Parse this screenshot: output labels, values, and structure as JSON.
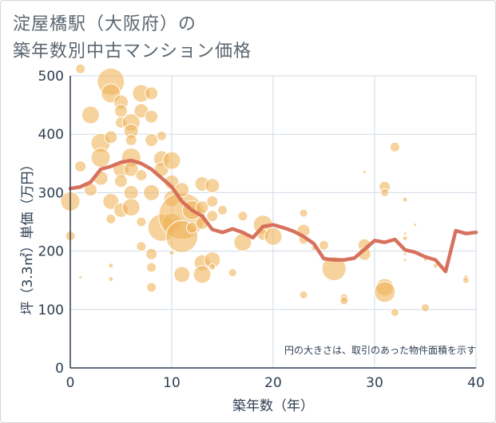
{
  "title": {
    "line1": "淀屋橋駅（大阪府）の",
    "line2": "築年数別中古マンション価格"
  },
  "note": "円の大きさは、取引のあった物件面積を示す",
  "colors": {
    "bubble": "#f0b45a",
    "line": "#d46a55",
    "grid": "#cfdae3",
    "axis": "#2d3e50"
  },
  "chart_data": {
    "type": "scatter",
    "xlabel": "築年数（年）",
    "ylabel": "坪（3.3㎡）単価（万円）",
    "xlim": [
      0,
      40
    ],
    "ylim": [
      0,
      500
    ],
    "xticks": [
      0,
      10,
      20,
      30,
      40
    ],
    "yticks": [
      0,
      100,
      200,
      300,
      400,
      500
    ],
    "grid": true,
    "points": [
      {
        "x": 0,
        "y": 285,
        "size": 12
      },
      {
        "x": 0,
        "y": 226,
        "size": 6
      },
      {
        "x": 1,
        "y": 512,
        "size": 6
      },
      {
        "x": 1,
        "y": 345,
        "size": 7
      },
      {
        "x": 1,
        "y": 155,
        "size": 2
      },
      {
        "x": 2,
        "y": 433,
        "size": 11
      },
      {
        "x": 2,
        "y": 305,
        "size": 8
      },
      {
        "x": 3,
        "y": 385,
        "size": 12
      },
      {
        "x": 3,
        "y": 360,
        "size": 12
      },
      {
        "x": 3,
        "y": 325,
        "size": 9
      },
      {
        "x": 4,
        "y": 490,
        "size": 17
      },
      {
        "x": 4,
        "y": 470,
        "size": 12
      },
      {
        "x": 4,
        "y": 395,
        "size": 8
      },
      {
        "x": 4,
        "y": 285,
        "size": 10
      },
      {
        "x": 4,
        "y": 255,
        "size": 6
      },
      {
        "x": 4,
        "y": 175,
        "size": 3
      },
      {
        "x": 4,
        "y": 152,
        "size": 3
      },
      {
        "x": 5,
        "y": 455,
        "size": 9
      },
      {
        "x": 5,
        "y": 440,
        "size": 8
      },
      {
        "x": 5,
        "y": 420,
        "size": 7
      },
      {
        "x": 5,
        "y": 340,
        "size": 10
      },
      {
        "x": 5,
        "y": 320,
        "size": 8
      },
      {
        "x": 5,
        "y": 270,
        "size": 9
      },
      {
        "x": 6,
        "y": 420,
        "size": 11
      },
      {
        "x": 6,
        "y": 405,
        "size": 9
      },
      {
        "x": 6,
        "y": 390,
        "size": 7
      },
      {
        "x": 6,
        "y": 360,
        "size": 12
      },
      {
        "x": 6,
        "y": 340,
        "size": 9
      },
      {
        "x": 6,
        "y": 300,
        "size": 9
      },
      {
        "x": 6,
        "y": 275,
        "size": 11
      },
      {
        "x": 7,
        "y": 470,
        "size": 11
      },
      {
        "x": 7,
        "y": 440,
        "size": 9
      },
      {
        "x": 7,
        "y": 330,
        "size": 7
      },
      {
        "x": 7,
        "y": 250,
        "size": 6
      },
      {
        "x": 7,
        "y": 208,
        "size": 6
      },
      {
        "x": 8,
        "y": 470,
        "size": 8
      },
      {
        "x": 8,
        "y": 430,
        "size": 8
      },
      {
        "x": 8,
        "y": 390,
        "size": 8
      },
      {
        "x": 8,
        "y": 300,
        "size": 10
      },
      {
        "x": 8,
        "y": 195,
        "size": 7
      },
      {
        "x": 8,
        "y": 172,
        "size": 6
      },
      {
        "x": 8,
        "y": 138,
        "size": 6
      },
      {
        "x": 9,
        "y": 397,
        "size": 6
      },
      {
        "x": 9,
        "y": 358,
        "size": 10
      },
      {
        "x": 9,
        "y": 340,
        "size": 9
      },
      {
        "x": 9,
        "y": 240,
        "size": 17
      },
      {
        "x": 10,
        "y": 355,
        "size": 11
      },
      {
        "x": 10,
        "y": 318,
        "size": 9
      },
      {
        "x": 10,
        "y": 290,
        "size": 10
      },
      {
        "x": 10,
        "y": 248,
        "size": 12
      },
      {
        "x": 10,
        "y": 197,
        "size": 3
      },
      {
        "x": 11,
        "y": 260,
        "size": 29
      },
      {
        "x": 11,
        "y": 225,
        "size": 20
      },
      {
        "x": 11,
        "y": 305,
        "size": 9
      },
      {
        "x": 11,
        "y": 160,
        "size": 10
      },
      {
        "x": 12,
        "y": 270,
        "size": 12
      },
      {
        "x": 12,
        "y": 240,
        "size": 7
      },
      {
        "x": 13,
        "y": 315,
        "size": 9
      },
      {
        "x": 13,
        "y": 275,
        "size": 8
      },
      {
        "x": 13,
        "y": 248,
        "size": 8
      },
      {
        "x": 13,
        "y": 180,
        "size": 10
      },
      {
        "x": 13,
        "y": 160,
        "size": 11
      },
      {
        "x": 14,
        "y": 312,
        "size": 9
      },
      {
        "x": 14,
        "y": 285,
        "size": 7
      },
      {
        "x": 14,
        "y": 260,
        "size": 7
      },
      {
        "x": 14,
        "y": 185,
        "size": 10
      },
      {
        "x": 14,
        "y": 173,
        "size": 4
      },
      {
        "x": 15,
        "y": 270,
        "size": 6
      },
      {
        "x": 16,
        "y": 163,
        "size": 5
      },
      {
        "x": 17,
        "y": 260,
        "size": 6
      },
      {
        "x": 17,
        "y": 215,
        "size": 11
      },
      {
        "x": 19,
        "y": 245,
        "size": 12
      },
      {
        "x": 19,
        "y": 228,
        "size": 7
      },
      {
        "x": 20,
        "y": 225,
        "size": 11
      },
      {
        "x": 23,
        "y": 265,
        "size": 5
      },
      {
        "x": 23,
        "y": 235,
        "size": 8
      },
      {
        "x": 23,
        "y": 220,
        "size": 6
      },
      {
        "x": 23,
        "y": 125,
        "size": 5
      },
      {
        "x": 24,
        "y": 205,
        "size": 3
      },
      {
        "x": 25,
        "y": 210,
        "size": 6
      },
      {
        "x": 26,
        "y": 170,
        "size": 15
      },
      {
        "x": 27,
        "y": 120,
        "size": 5
      },
      {
        "x": 27,
        "y": 115,
        "size": 5
      },
      {
        "x": 29,
        "y": 335,
        "size": 2
      },
      {
        "x": 29,
        "y": 210,
        "size": 8
      },
      {
        "x": 29,
        "y": 195,
        "size": 8
      },
      {
        "x": 31,
        "y": 310,
        "size": 7
      },
      {
        "x": 31,
        "y": 300,
        "size": 5
      },
      {
        "x": 31,
        "y": 138,
        "size": 11
      },
      {
        "x": 31,
        "y": 130,
        "size": 13
      },
      {
        "x": 32,
        "y": 378,
        "size": 6
      },
      {
        "x": 32,
        "y": 95,
        "size": 5
      },
      {
        "x": 33,
        "y": 288,
        "size": 3
      },
      {
        "x": 33,
        "y": 230,
        "size": 2
      },
      {
        "x": 33,
        "y": 222,
        "size": 3
      },
      {
        "x": 33,
        "y": 195,
        "size": 2
      },
      {
        "x": 33,
        "y": 185,
        "size": 2
      },
      {
        "x": 34,
        "y": 245,
        "size": 2
      },
      {
        "x": 35,
        "y": 103,
        "size": 5
      },
      {
        "x": 35,
        "y": 185,
        "size": 2
      },
      {
        "x": 36,
        "y": 175,
        "size": 3
      },
      {
        "x": 37,
        "y": 168,
        "size": 3
      },
      {
        "x": 39,
        "y": 155,
        "size": 3
      },
      {
        "x": 39,
        "y": 150,
        "size": 4
      }
    ],
    "series": [
      {
        "x": [
          0,
          1,
          2,
          3,
          4,
          5,
          6,
          7,
          8,
          9,
          10,
          11,
          12,
          13,
          14,
          15,
          16,
          17,
          18,
          19,
          20,
          21,
          22,
          23,
          24,
          25,
          26,
          27,
          28,
          29,
          30,
          31,
          32,
          33,
          34,
          35,
          36,
          37,
          38,
          39,
          40
        ],
        "y": [
          307,
          310,
          318,
          340,
          345,
          352,
          355,
          350,
          340,
          325,
          310,
          285,
          270,
          260,
          237,
          232,
          238,
          232,
          223,
          242,
          245,
          240,
          234,
          225,
          213,
          187,
          185,
          185,
          188,
          203,
          218,
          215,
          220,
          202,
          198,
          190,
          185,
          165,
          235,
          230,
          232
        ]
      }
    ]
  }
}
